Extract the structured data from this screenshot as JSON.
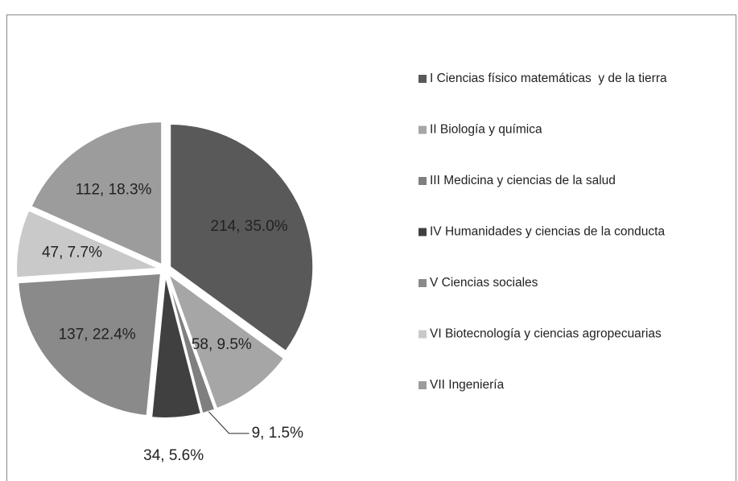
{
  "chart_data": {
    "type": "pie",
    "categories": [
      "I Ciencias físico matemáticas  y de la tierra",
      "II Biología y química",
      "III Medicina y ciencias de la salud",
      "IV Humanidades y ciencias de la conducta",
      "V Ciencias sociales",
      "VI Biotecnología y ciencias agropecuarias",
      "VII Ingeniería"
    ],
    "values": [
      214,
      58,
      9,
      34,
      137,
      47,
      112
    ],
    "value_labels": [
      "214, 35.0%",
      "58, 9.5%",
      "9, 1.5%",
      "34, 5.6%",
      "137, 22.4%",
      "47, 7.7%",
      "112, 18.3%"
    ],
    "colors": [
      "#595959",
      "#a6a6a6",
      "#7f7f7f",
      "#404040",
      "#8a8a8a",
      "#c9c9c9",
      "#9c9c9c"
    ],
    "legend": "right"
  }
}
